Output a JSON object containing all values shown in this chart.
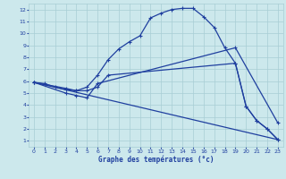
{
  "xlabel": "Graphe des températures (°c)",
  "bg_color": "#cce8ec",
  "line_color": "#1f3f9f",
  "grid_color": "#a8cdd4",
  "xlim": [
    -0.5,
    23.5
  ],
  "ylim": [
    0.5,
    12.5
  ],
  "xticks": [
    0,
    1,
    2,
    3,
    4,
    5,
    6,
    7,
    8,
    9,
    10,
    11,
    12,
    13,
    14,
    15,
    16,
    17,
    18,
    19,
    20,
    21,
    22,
    23
  ],
  "yticks": [
    1,
    2,
    3,
    4,
    5,
    6,
    7,
    8,
    9,
    10,
    11,
    12
  ],
  "line1_x": [
    0,
    1,
    2,
    3,
    4,
    5,
    6,
    7,
    8,
    9,
    10,
    11,
    12,
    13,
    14,
    15,
    16,
    17,
    18,
    19,
    20,
    21,
    22,
    23
  ],
  "line1_y": [
    5.9,
    5.8,
    5.5,
    5.3,
    5.2,
    5.5,
    6.5,
    7.8,
    8.7,
    9.3,
    9.8,
    11.3,
    11.7,
    12.0,
    12.1,
    12.1,
    11.4,
    10.5,
    8.8,
    7.5,
    3.9,
    2.7,
    2.0,
    1.1
  ],
  "line2_x": [
    0,
    3,
    4,
    5,
    6,
    7,
    19,
    20,
    21,
    22,
    23
  ],
  "line2_y": [
    5.9,
    5.4,
    5.2,
    5.2,
    5.5,
    6.5,
    7.5,
    3.9,
    2.7,
    2.0,
    1.1
  ],
  "line3_x": [
    0,
    3,
    4,
    5,
    6,
    19,
    23
  ],
  "line3_y": [
    5.9,
    5.0,
    4.8,
    4.6,
    5.8,
    8.8,
    2.5
  ],
  "line4_x": [
    0,
    23
  ],
  "line4_y": [
    5.9,
    1.1
  ]
}
